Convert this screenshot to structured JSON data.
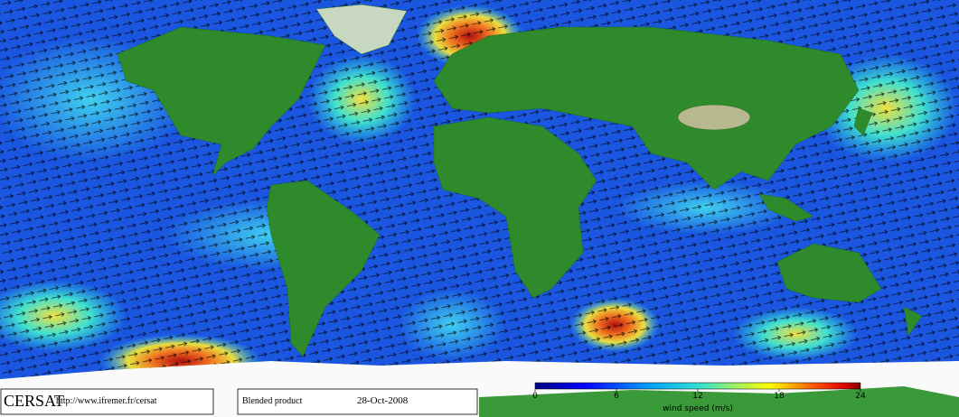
{
  "logo": "CERSAT",
  "url": "http://www.ifremer.fr/cersat",
  "product": "Blended product",
  "date": "28-Oct-2008",
  "colorbar": {
    "label": "wind speed (m/s)",
    "lim": [
      0,
      24
    ],
    "ticks": [
      0,
      6,
      12,
      18,
      24
    ]
  }
}
